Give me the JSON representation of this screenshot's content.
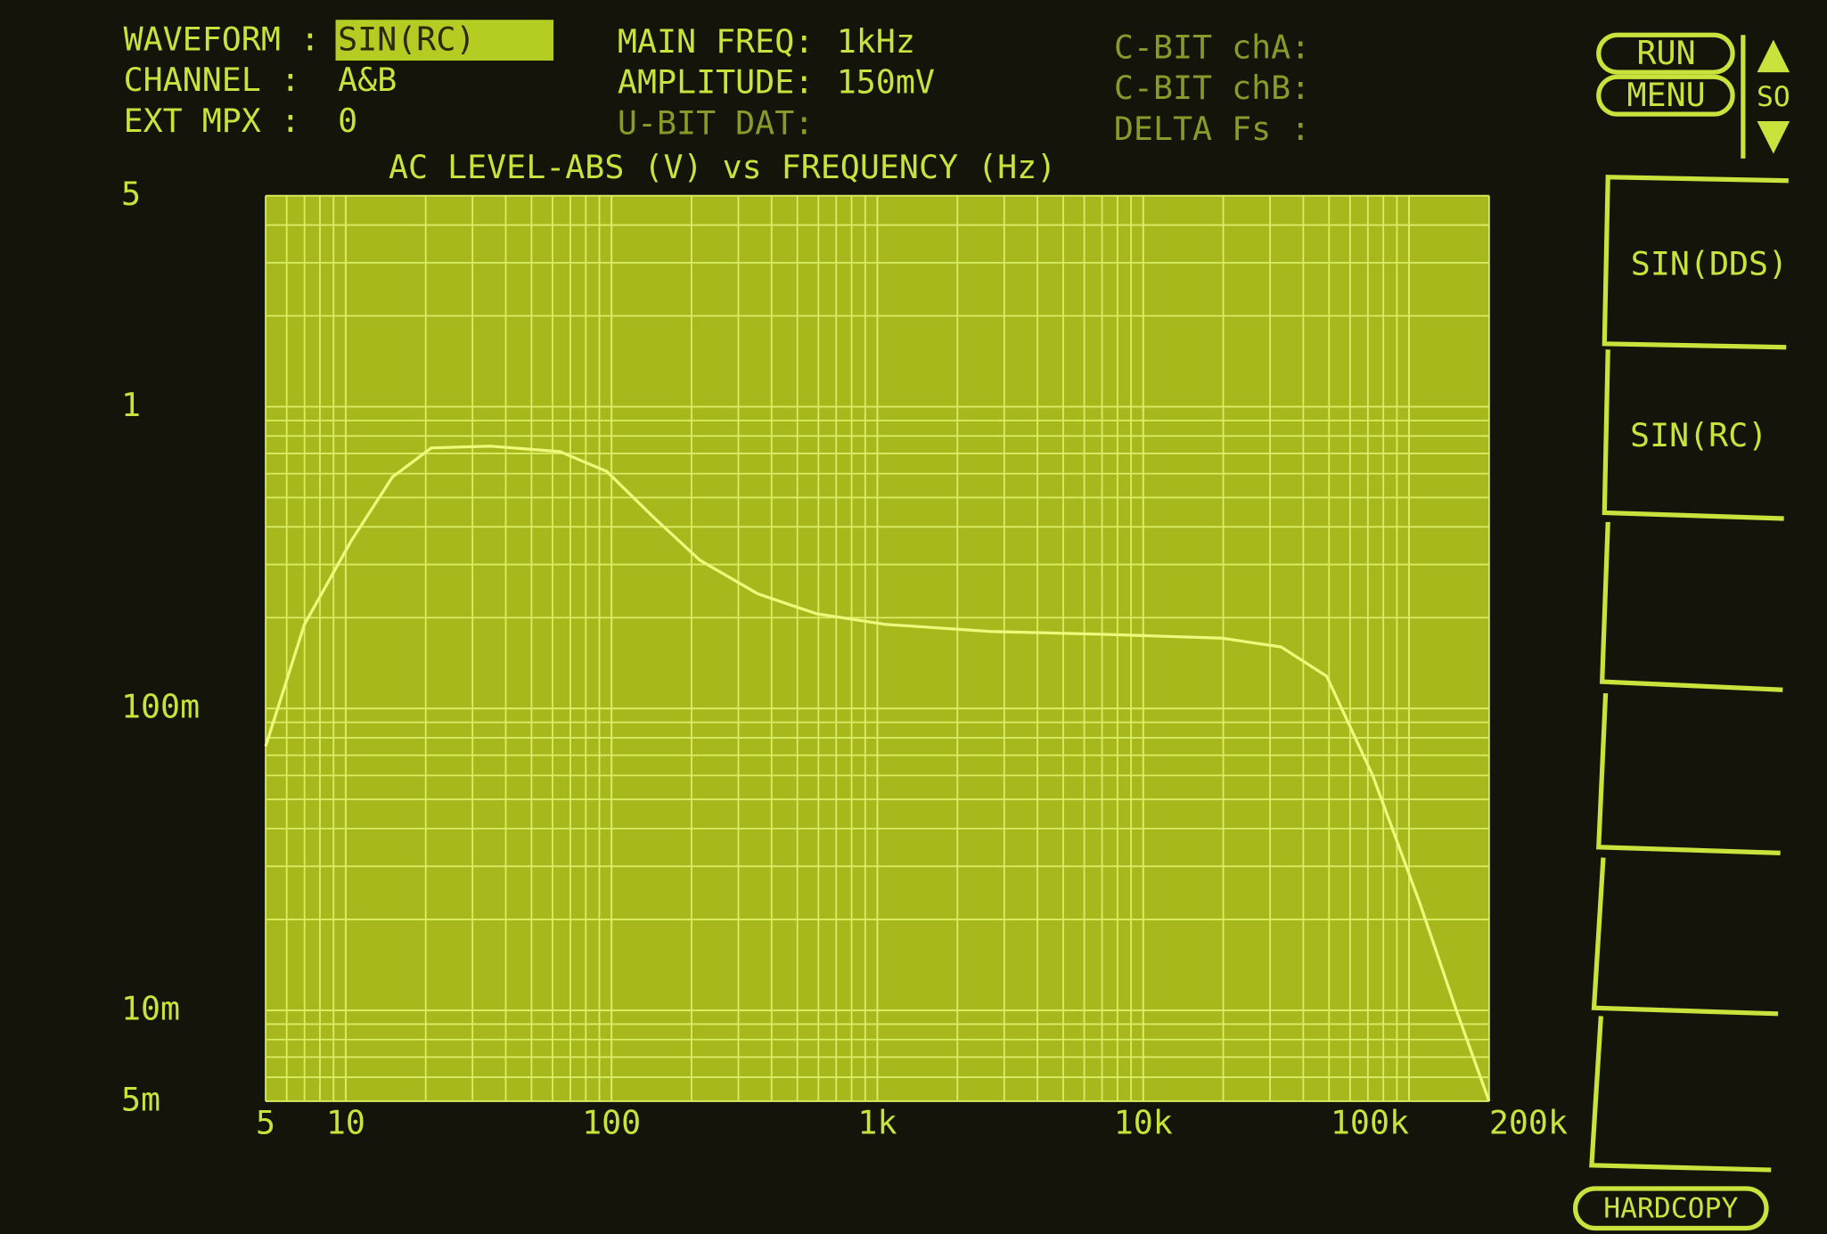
{
  "header": {
    "fields": [
      {
        "label": "WAVEFORM :",
        "value": "SIN(RC)"
      },
      {
        "label": "CHANNEL  :",
        "value": "A&B"
      },
      {
        "label": "EXT MPX  :",
        "value": "0"
      },
      {
        "label": "MAIN FREQ:",
        "value": "1kHz"
      },
      {
        "label": "AMPLITUDE:",
        "value": "150mV"
      },
      {
        "label": "U-BIT DAT:"
      },
      {
        "label": "C-BIT chA:"
      },
      {
        "label": "C-BIT chB:"
      },
      {
        "label": "DELTA Fs :"
      }
    ]
  },
  "softkeys": {
    "run": "RUN",
    "menu": "MENU",
    "side": "SO",
    "keys": [
      "SIN(DDS)",
      "SIN(RC)"
    ],
    "hardcopy": "HARDCOPY"
  },
  "chart_data": {
    "type": "line",
    "title": "AC LEVEL-ABS (V) vs FREQUENCY (Hz)",
    "x_scale": "log",
    "y_scale": "log",
    "grid": true,
    "color": "#eef87a",
    "x": [
      5,
      7,
      10.5,
      15,
      21,
      35,
      64,
      96,
      144,
      215,
      355,
      590,
      1070,
      2650,
      7200,
      19800,
      33000,
      49000,
      73000,
      110000,
      150000,
      200000
    ],
    "values": [
      0.075,
      0.19,
      0.36,
      0.585,
      0.73,
      0.74,
      0.71,
      0.61,
      0.43,
      0.31,
      0.24,
      0.206,
      0.19,
      0.18,
      0.176,
      0.171,
      0.16,
      0.128,
      0.06,
      0.0225,
      0.0101,
      0.005
    ],
    "xlim": [
      5,
      200000
    ],
    "xticks": [
      5,
      10,
      100,
      {
        "value": 1000,
        "label": "1k"
      },
      {
        "value": 10000,
        "label": "10k"
      },
      {
        "value": 100000,
        "label": "100k"
      },
      {
        "value": 200000,
        "label": "200k"
      }
    ],
    "ylim": [
      0.005,
      5
    ],
    "yticks": [
      5,
      1,
      {
        "value": 0.1,
        "label": "100m"
      },
      {
        "value": 0.01,
        "label": "10m"
      },
      {
        "value": 0.005,
        "label": "5m"
      }
    ]
  }
}
